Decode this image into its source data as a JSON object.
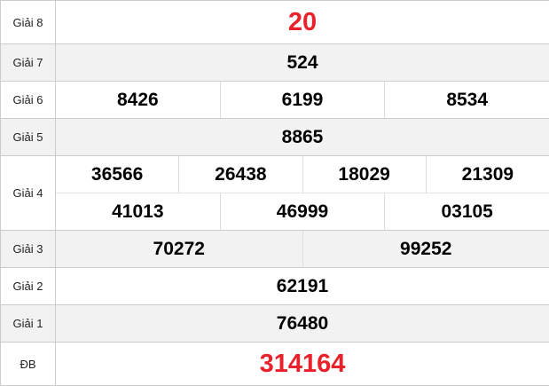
{
  "accent_color": "#e8212b",
  "prizes": [
    {
      "label": "Giải 8",
      "rows": [
        [
          "20"
        ]
      ],
      "highlight": true
    },
    {
      "label": "Giải 7",
      "rows": [
        [
          "524"
        ]
      ]
    },
    {
      "label": "Giải 6",
      "rows": [
        [
          "8426",
          "6199",
          "8534"
        ]
      ]
    },
    {
      "label": "Giải 5",
      "rows": [
        [
          "8865"
        ]
      ]
    },
    {
      "label": "Giải 4",
      "rows": [
        [
          "36566",
          "26438",
          "18029",
          "21309"
        ],
        [
          "41013",
          "46999",
          "03105"
        ]
      ]
    },
    {
      "label": "Giải 3",
      "rows": [
        [
          "70272",
          "99252"
        ]
      ]
    },
    {
      "label": "Giải 2",
      "rows": [
        [
          "62191"
        ]
      ]
    },
    {
      "label": "Giải 1",
      "rows": [
        [
          "76480"
        ]
      ]
    },
    {
      "label": "ĐB",
      "rows": [
        [
          "314164"
        ]
      ],
      "highlight": true
    }
  ]
}
